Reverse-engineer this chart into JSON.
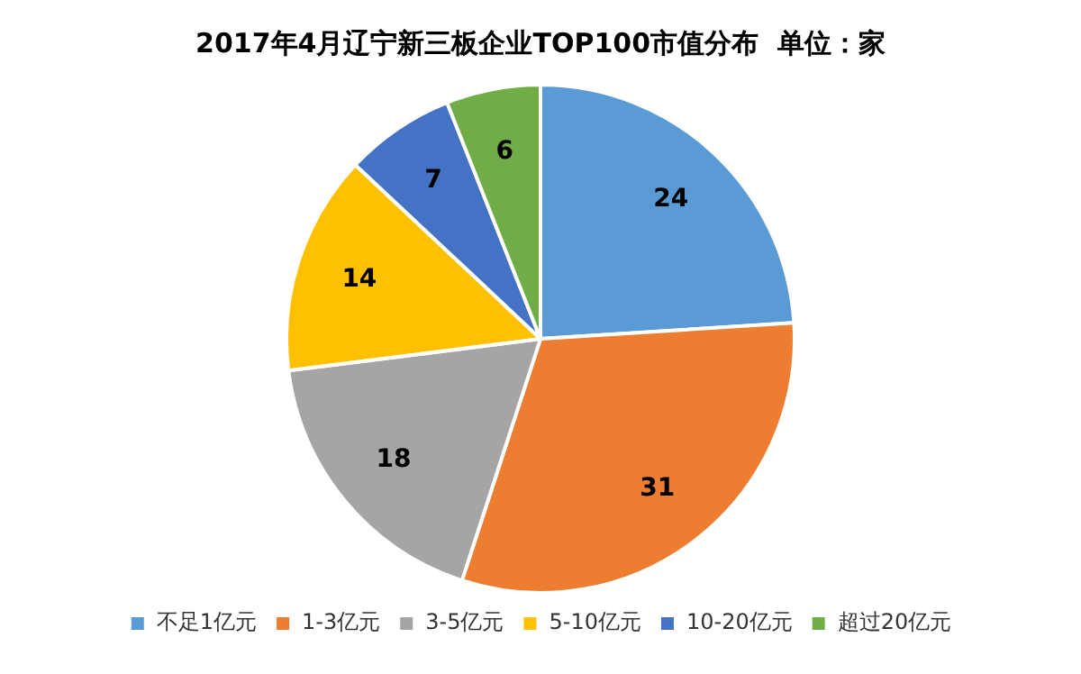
{
  "chart_data": {
    "type": "pie",
    "title": "2017年4月辽宁新三板企业TOP100市值分布  单位：家",
    "categories": [
      "不足1亿元",
      "1-3亿元",
      "3-5亿元",
      "5-10亿元",
      "10-20亿元",
      "超过20亿元"
    ],
    "values": [
      24,
      31,
      18,
      14,
      7,
      6
    ],
    "colors": [
      "#5b9bd5",
      "#ed7d31",
      "#a5a5a5",
      "#ffc000",
      "#4472c4",
      "#70ad47"
    ],
    "data_labels": true,
    "legend": "bottom"
  }
}
